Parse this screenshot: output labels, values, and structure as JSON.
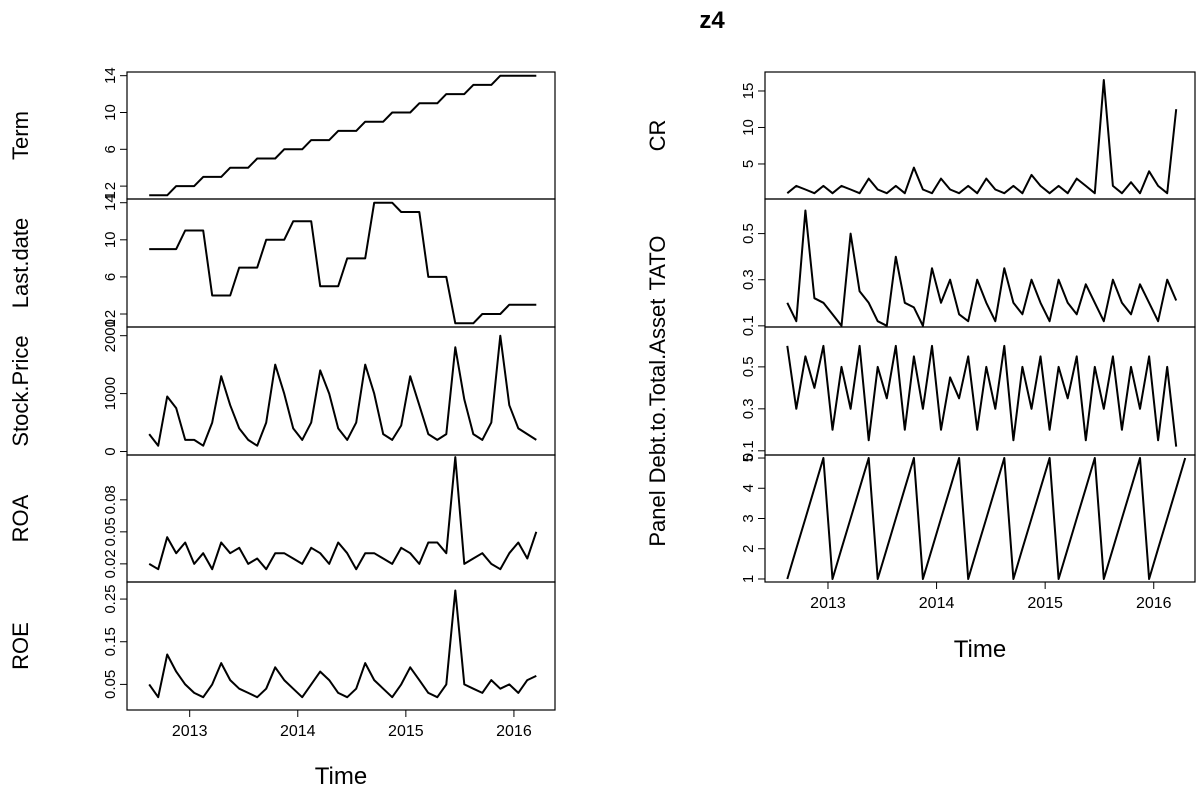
{
  "title": "z4",
  "chart_data": [
    {
      "type": "line",
      "panel_group": "left",
      "xlabel": "Time",
      "x_ticks": [
        "2013",
        "2014",
        "2015",
        "2016"
      ],
      "x_tick_values": [
        2013,
        2014,
        2015,
        2016
      ],
      "xlim": [
        2012.42,
        2016.38
      ],
      "series_start": 2012.625,
      "series_step": 0.0833,
      "panels": [
        {
          "name": "Term",
          "ylabel": "Term",
          "ylim": [
            0.6,
            14.4
          ],
          "y_ticks": [
            2,
            6,
            10,
            14
          ],
          "y_tick_labels": [
            "2",
            "6",
            "10",
            "14"
          ],
          "y_tick_overlap_label": "1",
          "values": [
            1,
            1,
            1,
            2,
            2,
            2,
            3,
            3,
            3,
            4,
            4,
            4,
            5,
            5,
            5,
            6,
            6,
            6,
            7,
            7,
            7,
            8,
            8,
            8,
            9,
            9,
            9,
            10,
            10,
            10,
            11,
            11,
            11,
            12,
            12,
            12,
            13,
            13,
            13,
            14,
            14,
            14,
            14,
            14
          ]
        },
        {
          "name": "Last.date",
          "ylabel": "Last.date",
          "ylim": [
            0.6,
            14.4
          ],
          "y_ticks": [
            2,
            6,
            10,
            14
          ],
          "y_tick_labels": [
            "2",
            "6",
            "10",
            "14"
          ],
          "y_tick_overlap_label": "1",
          "values": [
            9,
            9,
            9,
            9,
            11,
            11,
            11,
            4,
            4,
            4,
            7,
            7,
            7,
            10,
            10,
            10,
            12,
            12,
            12,
            5,
            5,
            5,
            8,
            8,
            8,
            14,
            14,
            14,
            13,
            13,
            13,
            6,
            6,
            6,
            1,
            1,
            1,
            2,
            2,
            2,
            3,
            3,
            3,
            3
          ]
        },
        {
          "name": "Stock.Price",
          "ylabel": "Stock.Price",
          "ylim": [
            -60,
            2150
          ],
          "y_ticks": [
            0,
            1000,
            2000
          ],
          "y_tick_labels": [
            "0",
            "1000",
            "2000"
          ],
          "values": [
            300,
            100,
            950,
            750,
            200,
            200,
            100,
            500,
            1300,
            800,
            400,
            200,
            100,
            500,
            1500,
            1000,
            400,
            200,
            500,
            1400,
            1000,
            400,
            200,
            500,
            1500,
            1000,
            300,
            200,
            450,
            1300,
            800,
            300,
            200,
            300,
            1800,
            900,
            300,
            200,
            500,
            2000,
            800,
            400,
            300,
            200
          ]
        },
        {
          "name": "ROA",
          "ylabel": "ROA",
          "ylim": [
            0.003,
            0.122
          ],
          "y_ticks": [
            0.02,
            0.05,
            0.08
          ],
          "y_tick_labels": [
            "0.02",
            "0.05",
            "0.08"
          ],
          "values": [
            0.02,
            0.015,
            0.045,
            0.03,
            0.04,
            0.02,
            0.03,
            0.015,
            0.04,
            0.03,
            0.035,
            0.02,
            0.025,
            0.015,
            0.03,
            0.03,
            0.025,
            0.02,
            0.035,
            0.03,
            0.02,
            0.04,
            0.03,
            0.015,
            0.03,
            0.03,
            0.025,
            0.02,
            0.035,
            0.03,
            0.02,
            0.04,
            0.04,
            0.03,
            0.12,
            0.02,
            0.025,
            0.03,
            0.02,
            0.015,
            0.03,
            0.04,
            0.025,
            0.05
          ]
        },
        {
          "name": "ROE",
          "ylabel": "ROE",
          "ylim": [
            -0.01,
            0.29
          ],
          "y_ticks": [
            0.05,
            0.15,
            0.25
          ],
          "y_tick_labels": [
            "0.05",
            "0.15",
            "0.25"
          ],
          "values": [
            0.05,
            0.02,
            0.12,
            0.08,
            0.05,
            0.03,
            0.02,
            0.05,
            0.1,
            0.06,
            0.04,
            0.03,
            0.02,
            0.04,
            0.09,
            0.06,
            0.04,
            0.02,
            0.05,
            0.08,
            0.06,
            0.03,
            0.02,
            0.04,
            0.1,
            0.06,
            0.04,
            0.02,
            0.05,
            0.09,
            0.06,
            0.03,
            0.02,
            0.05,
            0.27,
            0.05,
            0.04,
            0.03,
            0.06,
            0.04,
            0.05,
            0.03,
            0.06,
            0.07
          ]
        }
      ]
    },
    {
      "type": "line",
      "panel_group": "right",
      "xlabel": "Time",
      "x_ticks": [
        "2013",
        "2014",
        "2015",
        "2016"
      ],
      "x_tick_values": [
        2013,
        2014,
        2015,
        2016
      ],
      "xlim": [
        2012.42,
        2016.38
      ],
      "series_start": 2012.625,
      "series_step": 0.0833,
      "panels": [
        {
          "name": "CR",
          "ylabel": "CR",
          "ylim": [
            0.2,
            17.6
          ],
          "y_ticks": [
            5,
            10,
            15
          ],
          "y_tick_labels": [
            "5",
            "10",
            "15"
          ],
          "values": [
            1,
            2,
            1.5,
            1,
            2,
            1,
            2,
            1.5,
            1,
            3,
            1.5,
            1,
            2,
            1,
            4.5,
            1.5,
            1,
            3,
            1.5,
            1,
            2,
            1,
            3,
            1.5,
            1,
            2,
            1,
            3.5,
            2,
            1,
            2,
            1,
            3,
            2,
            1,
            16.5,
            2,
            1,
            2.5,
            1,
            4,
            2,
            1,
            12.5
          ]
        },
        {
          "name": "TATO",
          "ylabel": "TATO",
          "ylim": [
            0.095,
            0.65
          ],
          "y_ticks": [
            0.1,
            0.3,
            0.5
          ],
          "y_tick_labels": [
            "0.1",
            "0.3",
            "0.5"
          ],
          "values": [
            0.2,
            0.12,
            0.6,
            0.22,
            0.2,
            0.15,
            0.1,
            0.5,
            0.25,
            0.2,
            0.12,
            0.1,
            0.4,
            0.2,
            0.18,
            0.1,
            0.35,
            0.2,
            0.3,
            0.15,
            0.12,
            0.3,
            0.2,
            0.12,
            0.35,
            0.2,
            0.15,
            0.3,
            0.2,
            0.12,
            0.3,
            0.2,
            0.15,
            0.28,
            0.2,
            0.12,
            0.3,
            0.2,
            0.15,
            0.28,
            0.2,
            0.12,
            0.3,
            0.21
          ]
        },
        {
          "name": "Debt.to.Total.Asset",
          "ylabel": "Debt.to.Total.Asset",
          "ylim": [
            0.08,
            0.69
          ],
          "y_ticks": [
            0.1,
            0.3,
            0.5
          ],
          "y_tick_labels": [
            "0.1",
            "0.3",
            "0.5"
          ],
          "values": [
            0.6,
            0.3,
            0.55,
            0.4,
            0.6,
            0.2,
            0.5,
            0.3,
            0.6,
            0.15,
            0.5,
            0.35,
            0.6,
            0.2,
            0.55,
            0.3,
            0.6,
            0.2,
            0.45,
            0.35,
            0.55,
            0.2,
            0.5,
            0.3,
            0.6,
            0.15,
            0.5,
            0.3,
            0.55,
            0.2,
            0.5,
            0.35,
            0.55,
            0.15,
            0.5,
            0.3,
            0.55,
            0.2,
            0.5,
            0.3,
            0.55,
            0.15,
            0.5,
            0.12
          ]
        },
        {
          "name": "Panel",
          "ylabel": "Panel",
          "ylim": [
            0.9,
            5.1
          ],
          "y_ticks": [
            1,
            2,
            3,
            4,
            5
          ],
          "y_tick_labels": [
            "1",
            "2",
            "3",
            "4",
            "5"
          ],
          "values": [
            1,
            2,
            3,
            4,
            5,
            1,
            2,
            3,
            4,
            5,
            1,
            2,
            3,
            4,
            5,
            1,
            2,
            3,
            4,
            5,
            1,
            2,
            3,
            4,
            5,
            1,
            2,
            3,
            4,
            5,
            1,
            2,
            3,
            4,
            5,
            1,
            2,
            3,
            4,
            5,
            1,
            2,
            3,
            4,
            5
          ]
        }
      ]
    }
  ]
}
